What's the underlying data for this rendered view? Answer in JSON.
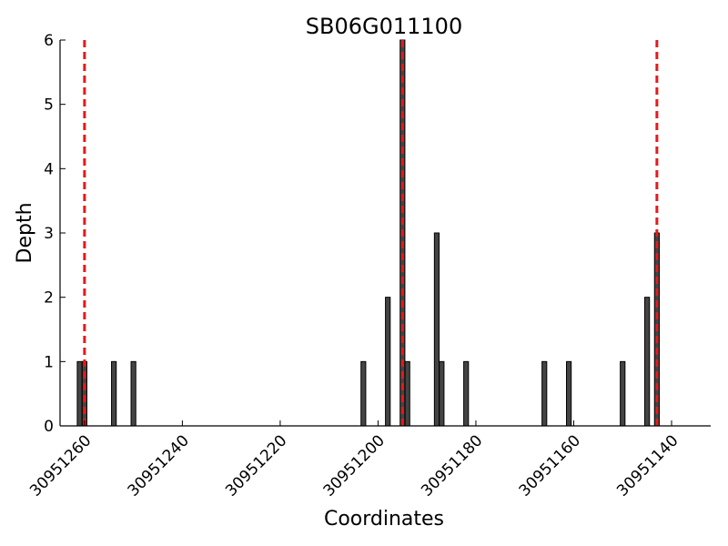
{
  "chart_data": {
    "type": "bar",
    "title": "SB06G011100",
    "xlabel": "Coordinates",
    "ylabel": "Depth",
    "x_axis_reversed": true,
    "xlim": [
      30951265,
      30951132
    ],
    "ylim": [
      0,
      6
    ],
    "yticks": [
      0,
      1,
      2,
      3,
      4,
      5,
      6
    ],
    "xticks": [
      30951260,
      30951240,
      30951220,
      30951200,
      30951180,
      30951160,
      30951140
    ],
    "xtick_labels": [
      "30951260",
      "30951240",
      "30951220",
      "30951200",
      "30951180",
      "30951160",
      "30951140"
    ],
    "bar_color": "#444444",
    "bars": [
      {
        "x": 30951261,
        "value": 1
      },
      {
        "x": 30951260,
        "value": 1
      },
      {
        "x": 30951254,
        "value": 1
      },
      {
        "x": 30951250,
        "value": 1
      },
      {
        "x": 30951203,
        "value": 1
      },
      {
        "x": 30951198,
        "value": 2
      },
      {
        "x": 30951195,
        "value": 6
      },
      {
        "x": 30951194,
        "value": 1
      },
      {
        "x": 30951188,
        "value": 3
      },
      {
        "x": 30951187,
        "value": 1
      },
      {
        "x": 30951182,
        "value": 1
      },
      {
        "x": 30951166,
        "value": 1
      },
      {
        "x": 30951161,
        "value": 1
      },
      {
        "x": 30951150,
        "value": 1
      },
      {
        "x": 30951145,
        "value": 2
      },
      {
        "x": 30951143,
        "value": 3
      }
    ],
    "reference_lines": {
      "style": "dashed",
      "color": "#e41a1c",
      "x": [
        30951260,
        30951195,
        30951143
      ]
    },
    "grid": false,
    "legend": "none"
  }
}
